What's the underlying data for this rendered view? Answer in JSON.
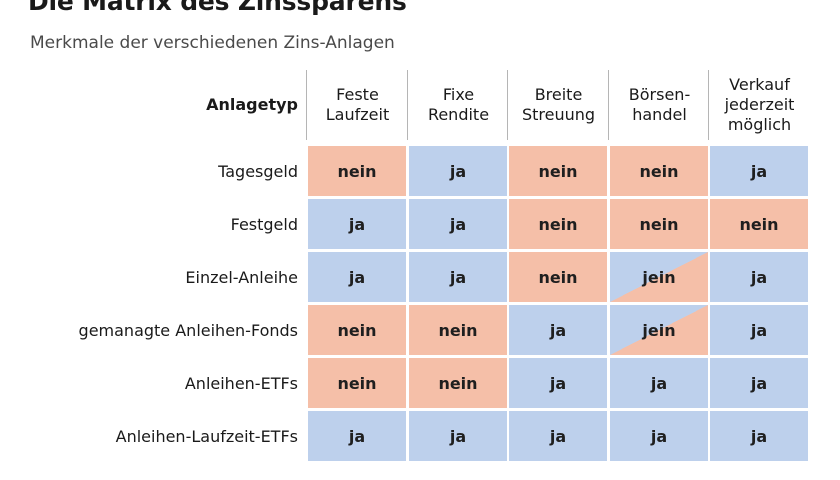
{
  "title": "Die Matrix des Zinssparens",
  "subtitle": "Merkmale der verschiedenen Zins-Anlagen",
  "colors": {
    "ja": "#bdd0ec",
    "nein": "#f5bfa8"
  },
  "chart_data": {
    "type": "table",
    "title": "Die Matrix des Zinssparens",
    "subtitle": "Merkmale der verschiedenen Zins-Anlagen",
    "row_header": "Anlagetyp",
    "columns": [
      [
        "Feste",
        "Laufzeit"
      ],
      [
        "Fixe",
        "Rendite"
      ],
      [
        "Breite",
        "Streuung"
      ],
      [
        "Börsen-",
        "handel"
      ],
      [
        "Verkauf",
        "jederzeit",
        "möglich"
      ]
    ],
    "rows": [
      {
        "label": "Tagesgeld",
        "values": [
          "nein",
          "ja",
          "nein",
          "nein",
          "ja"
        ]
      },
      {
        "label": "Festgeld",
        "values": [
          "ja",
          "ja",
          "nein",
          "nein",
          "nein"
        ]
      },
      {
        "label": "Einzel-Anleihe",
        "values": [
          "ja",
          "ja",
          "nein",
          "jein",
          "ja"
        ]
      },
      {
        "label": "gemanagte Anleihen-Fonds",
        "values": [
          "nein",
          "nein",
          "ja",
          "jein",
          "ja"
        ]
      },
      {
        "label": "Anleihen-ETFs",
        "values": [
          "nein",
          "nein",
          "ja",
          "ja",
          "ja"
        ]
      },
      {
        "label": "Anleihen-Laufzeit-ETFs",
        "values": [
          "ja",
          "ja",
          "ja",
          "ja",
          "ja"
        ]
      }
    ]
  }
}
